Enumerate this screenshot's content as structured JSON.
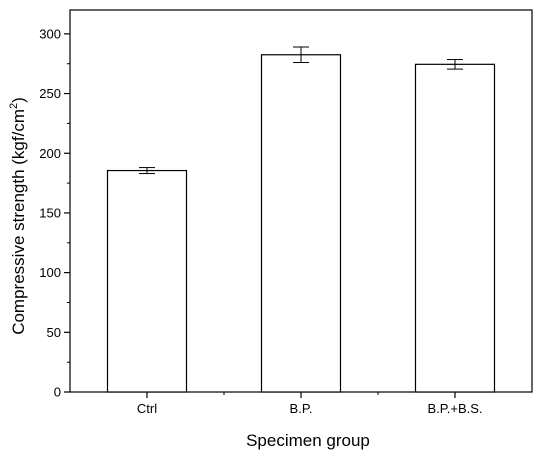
{
  "chart_data": {
    "type": "bar",
    "title": "",
    "xlabel": "Specimen group",
    "ylabel": "Compressive strength (kgf/cm",
    "ylabel_sup": "2",
    "ylabel_close": ")",
    "categories": [
      "Ctrl",
      "B.P.",
      "B.P.+B.S."
    ],
    "values": [
      185.5,
      282.5,
      274.5
    ],
    "errors": [
      2.5,
      6.5,
      4.0
    ],
    "ylim": [
      0,
      320
    ],
    "yticks": [
      0,
      50,
      100,
      150,
      200,
      250,
      300
    ],
    "grid": false,
    "legend": "none",
    "bar_fill": "#ffffff",
    "bar_stroke": "#000000"
  }
}
